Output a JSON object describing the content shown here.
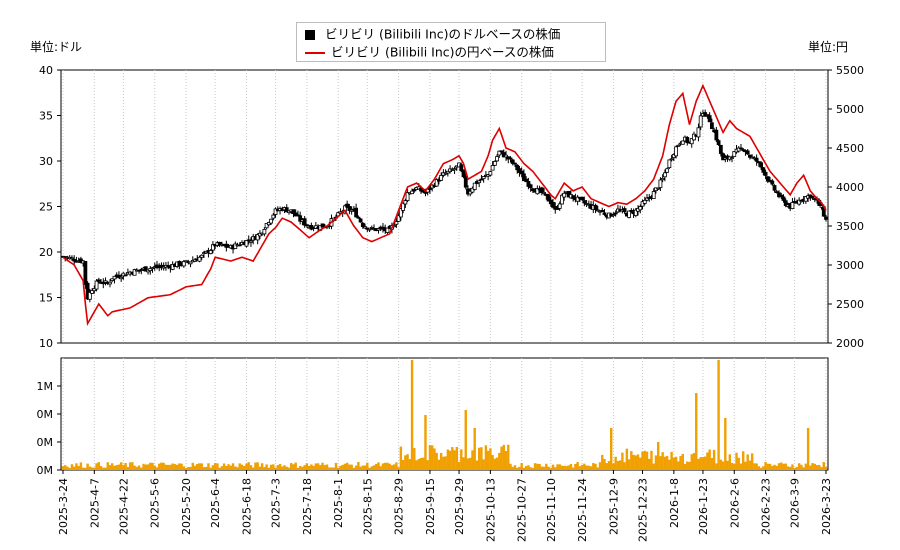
{
  "chart_data": {
    "type": "candlestick+line+bar",
    "legend": [
      {
        "label": "ビリビリ (Bilibili Inc)のドルベースの株価",
        "color": "#000000",
        "marker": "square"
      },
      {
        "label": "ビリビリ (Bilibili Inc)の円ベースの株価",
        "color": "#dd0000",
        "marker": "line"
      }
    ],
    "left_axis_label": "単位:ドル",
    "right_axis_label": "単位:円",
    "usd_axis": {
      "min": 10,
      "max": 40,
      "ticks": [
        10,
        15,
        20,
        25,
        30,
        35,
        40
      ]
    },
    "jpy_axis": {
      "min": 2000,
      "max": 5500,
      "ticks": [
        2000,
        2500,
        3000,
        3500,
        4000,
        4500,
        5000,
        5500
      ]
    },
    "volume_axis": {
      "ticks": [
        "0M",
        "0M",
        "0M",
        "1M"
      ]
    },
    "x_tick_labels": [
      "2025-3-24",
      "2025-4-7",
      "2025-4-22",
      "2025-5-6",
      "2025-5-20",
      "2025-6-4",
      "2025-6-18",
      "2025-7-3",
      "2025-7-18",
      "2025-8-1",
      "2025-8-15",
      "2025-8-29",
      "2025-9-15",
      "2025-9-29",
      "2025-10-13",
      "2025-10-27",
      "2025-11-10",
      "2025-11-24",
      "2025-12-9",
      "2025-12-23",
      "2026-1-8",
      "2026-1-23",
      "2026-2-6",
      "2026-2-23",
      "2026-3-9",
      "2026-3-23"
    ],
    "usd_close_anchors": [
      [
        0,
        19.5
      ],
      [
        5,
        19.2
      ],
      [
        9,
        19.0
      ],
      [
        10,
        16.5
      ],
      [
        11,
        15.0
      ],
      [
        13,
        16.0
      ],
      [
        16,
        16.8
      ],
      [
        20,
        16.5
      ],
      [
        22,
        17.2
      ],
      [
        30,
        17.8
      ],
      [
        38,
        18.2
      ],
      [
        48,
        18.5
      ],
      [
        55,
        18.8
      ],
      [
        62,
        19.5
      ],
      [
        66,
        20.3
      ],
      [
        68,
        20.8
      ],
      [
        75,
        20.5
      ],
      [
        80,
        21.0
      ],
      [
        85,
        21.5
      ],
      [
        88,
        22.0
      ],
      [
        92,
        23.5
      ],
      [
        95,
        24.5
      ],
      [
        98,
        24.8
      ],
      [
        102,
        24.5
      ],
      [
        106,
        23.5
      ],
      [
        110,
        22.8
      ],
      [
        115,
        22.8
      ],
      [
        118,
        23.0
      ],
      [
        122,
        23.8
      ],
      [
        126,
        24.8
      ],
      [
        130,
        24.5
      ],
      [
        134,
        23.0
      ],
      [
        138,
        22.5
      ],
      [
        142,
        22.5
      ],
      [
        146,
        22.3
      ],
      [
        150,
        24.0
      ],
      [
        154,
        26.5
      ],
      [
        158,
        27.0
      ],
      [
        162,
        26.5
      ],
      [
        166,
        27.5
      ],
      [
        170,
        28.5
      ],
      [
        174,
        29.0
      ],
      [
        177,
        29.5
      ],
      [
        179,
        28.0
      ],
      [
        181,
        26.5
      ],
      [
        184,
        27.5
      ],
      [
        187,
        28.0
      ],
      [
        190,
        28.5
      ],
      [
        192,
        29.5
      ],
      [
        195,
        31.0
      ],
      [
        198,
        30.5
      ],
      [
        202,
        29.5
      ],
      [
        206,
        28.0
      ],
      [
        210,
        27.0
      ],
      [
        214,
        26.5
      ],
      [
        218,
        25.5
      ],
      [
        220,
        24.5
      ],
      [
        224,
        26.5
      ],
      [
        228,
        26.0
      ],
      [
        232,
        25.5
      ],
      [
        236,
        25.0
      ],
      [
        240,
        24.5
      ],
      [
        244,
        24.0
      ],
      [
        248,
        24.6
      ],
      [
        252,
        24.2
      ],
      [
        256,
        24.5
      ],
      [
        260,
        25.5
      ],
      [
        264,
        26.5
      ],
      [
        268,
        28.0
      ],
      [
        271,
        30.0
      ],
      [
        274,
        31.5
      ],
      [
        277,
        32.5
      ],
      [
        280,
        32.0
      ],
      [
        283,
        33.0
      ],
      [
        286,
        35.5
      ],
      [
        289,
        34.5
      ],
      [
        292,
        32.5
      ],
      [
        295,
        30.0
      ],
      [
        298,
        30.5
      ],
      [
        301,
        31.0
      ],
      [
        304,
        31.5
      ],
      [
        307,
        30.5
      ],
      [
        310,
        30.0
      ],
      [
        313,
        29.0
      ],
      [
        316,
        27.5
      ],
      [
        319,
        26.5
      ],
      [
        322,
        25.5
      ],
      [
        325,
        25.0
      ],
      [
        328,
        25.5
      ],
      [
        331,
        26.0
      ],
      [
        334,
        26.2
      ],
      [
        337,
        25.5
      ],
      [
        339,
        24.8
      ],
      [
        341,
        23.5
      ]
    ],
    "jpy_close_anchors": [
      [
        0,
        3100
      ],
      [
        5,
        3000
      ],
      [
        9,
        2800
      ],
      [
        10,
        2500
      ],
      [
        11,
        2250
      ],
      [
        13,
        2350
      ],
      [
        16,
        2500
      ],
      [
        20,
        2350
      ],
      [
        22,
        2400
      ],
      [
        30,
        2450
      ],
      [
        38,
        2580
      ],
      [
        48,
        2620
      ],
      [
        55,
        2720
      ],
      [
        62,
        2750
      ],
      [
        66,
        2950
      ],
      [
        68,
        3100
      ],
      [
        75,
        3050
      ],
      [
        80,
        3100
      ],
      [
        85,
        3050
      ],
      [
        88,
        3200
      ],
      [
        92,
        3400
      ],
      [
        95,
        3480
      ],
      [
        98,
        3600
      ],
      [
        102,
        3550
      ],
      [
        106,
        3450
      ],
      [
        110,
        3350
      ],
      [
        115,
        3450
      ],
      [
        118,
        3500
      ],
      [
        122,
        3600
      ],
      [
        126,
        3700
      ],
      [
        130,
        3500
      ],
      [
        134,
        3350
      ],
      [
        138,
        3300
      ],
      [
        142,
        3350
      ],
      [
        146,
        3400
      ],
      [
        150,
        3700
      ],
      [
        154,
        4000
      ],
      [
        158,
        4050
      ],
      [
        162,
        3950
      ],
      [
        166,
        4100
      ],
      [
        170,
        4300
      ],
      [
        174,
        4350
      ],
      [
        177,
        4400
      ],
      [
        179,
        4300
      ],
      [
        181,
        4100
      ],
      [
        184,
        4150
      ],
      [
        187,
        4200
      ],
      [
        190,
        4400
      ],
      [
        192,
        4600
      ],
      [
        195,
        4750
      ],
      [
        198,
        4500
      ],
      [
        202,
        4450
      ],
      [
        206,
        4300
      ],
      [
        210,
        4200
      ],
      [
        214,
        4050
      ],
      [
        218,
        3900
      ],
      [
        220,
        3850
      ],
      [
        224,
        4050
      ],
      [
        228,
        3950
      ],
      [
        232,
        4000
      ],
      [
        236,
        3850
      ],
      [
        240,
        3800
      ],
      [
        244,
        3750
      ],
      [
        248,
        3800
      ],
      [
        252,
        3780
      ],
      [
        256,
        3850
      ],
      [
        260,
        3950
      ],
      [
        264,
        4100
      ],
      [
        268,
        4400
      ],
      [
        271,
        4800
      ],
      [
        274,
        5100
      ],
      [
        277,
        5200
      ],
      [
        280,
        4800
      ],
      [
        283,
        5100
      ],
      [
        286,
        5300
      ],
      [
        289,
        5100
      ],
      [
        292,
        4900
      ],
      [
        295,
        4700
      ],
      [
        298,
        4850
      ],
      [
        301,
        4750
      ],
      [
        304,
        4700
      ],
      [
        307,
        4650
      ],
      [
        310,
        4500
      ],
      [
        313,
        4350
      ],
      [
        316,
        4200
      ],
      [
        319,
        4100
      ],
      [
        322,
        4000
      ],
      [
        325,
        3900
      ],
      [
        328,
        4050
      ],
      [
        331,
        4150
      ],
      [
        334,
        3950
      ],
      [
        337,
        3850
      ],
      [
        339,
        3800
      ],
      [
        341,
        3700
      ]
    ]
  }
}
